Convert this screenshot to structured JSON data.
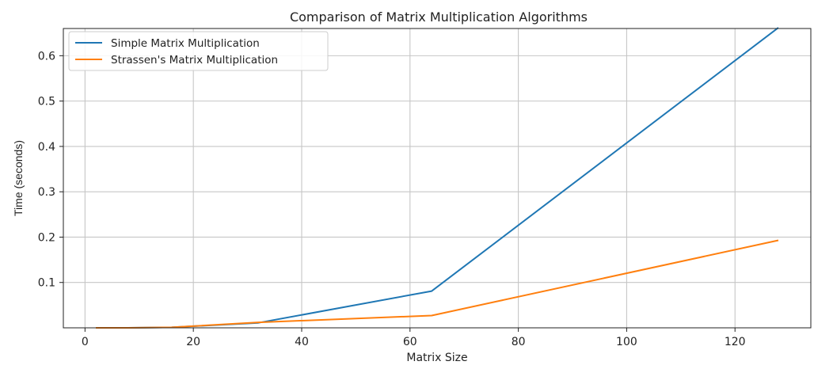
{
  "chart_data": {
    "type": "line",
    "title": "Comparison of Matrix Multiplication Algorithms",
    "xlabel": "Matrix Size",
    "ylabel": "Time (seconds)",
    "xlim": [
      -4,
      134
    ],
    "ylim": [
      0,
      0.66
    ],
    "xticks": [
      0,
      20,
      40,
      60,
      80,
      100,
      120
    ],
    "yticks": [
      0.1,
      0.2,
      0.3,
      0.4,
      0.5,
      0.6
    ],
    "grid": true,
    "legend_position": "top-left",
    "series": [
      {
        "name": "Simple Matrix Multiplication",
        "color": "#1f77b4",
        "x": [
          2,
          4,
          8,
          16,
          32,
          64,
          128
        ],
        "y": [
          0.0,
          0.0,
          0.0,
          0.001,
          0.011,
          0.081,
          0.662
        ]
      },
      {
        "name": "Strassen's Matrix Multiplication",
        "color": "#ff7f0e",
        "x": [
          2,
          4,
          8,
          16,
          32,
          64,
          128
        ],
        "y": [
          0.0,
          0.0,
          0.0,
          0.001,
          0.012,
          0.027,
          0.193
        ]
      }
    ]
  }
}
